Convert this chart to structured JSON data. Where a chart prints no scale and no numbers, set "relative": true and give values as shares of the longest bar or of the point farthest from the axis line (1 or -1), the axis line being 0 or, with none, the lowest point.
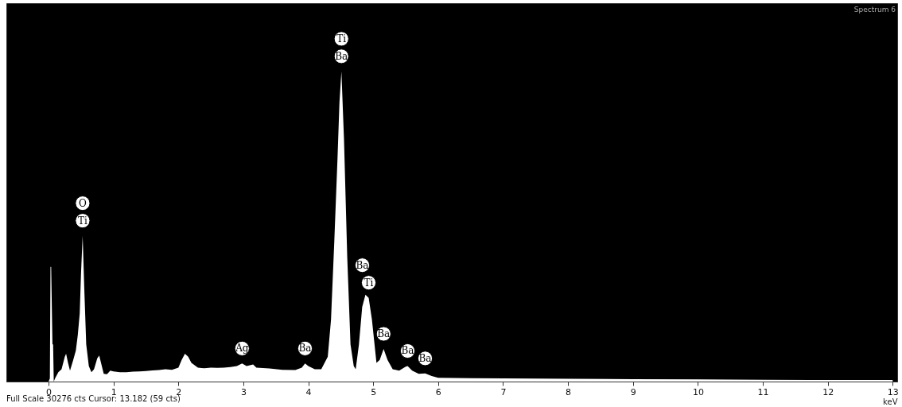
{
  "chart_data": {
    "type": "area",
    "title": "Spectrum 6",
    "xlabel": "keV",
    "relative": true,
    "xlim": [
      -0.65,
      13.07
    ],
    "xticks": [
      0,
      1,
      2,
      3,
      4,
      5,
      6,
      7,
      8,
      9,
      10,
      11,
      12,
      13
    ],
    "x": [
      0,
      0.02,
      0.03,
      0.04,
      0.06,
      0.07,
      0.08,
      0.1,
      0.15,
      0.2,
      0.25,
      0.27,
      0.3,
      0.33,
      0.38,
      0.42,
      0.45,
      0.48,
      0.5,
      0.525,
      0.55,
      0.58,
      0.62,
      0.66,
      0.7,
      0.75,
      0.78,
      0.82,
      0.85,
      0.9,
      0.95,
      1.0,
      1.1,
      1.2,
      1.3,
      1.4,
      1.5,
      1.6,
      1.7,
      1.8,
      1.9,
      2.0,
      2.05,
      2.1,
      2.15,
      2.2,
      2.3,
      2.4,
      2.5,
      2.6,
      2.7,
      2.8,
      2.9,
      2.98,
      3.05,
      3.15,
      3.2,
      3.4,
      3.6,
      3.8,
      3.9,
      3.95,
      4.0,
      4.1,
      4.2,
      4.3,
      4.35,
      4.4,
      4.45,
      4.48,
      4.51,
      4.55,
      4.6,
      4.65,
      4.7,
      4.73,
      4.78,
      4.83,
      4.88,
      4.93,
      4.98,
      5.05,
      5.1,
      5.16,
      5.22,
      5.3,
      5.4,
      5.5,
      5.53,
      5.6,
      5.7,
      5.8,
      5.9,
      6.0,
      6.5,
      7,
      8,
      9,
      10,
      11,
      12,
      13
    ],
    "series": [
      {
        "color": "#ffffff",
        "values": [
          0,
          0.01,
          0.37,
          0.37,
          0.12,
          0.12,
          0,
          0.01,
          0.03,
          0.04,
          0.08,
          0.09,
          0.06,
          0.035,
          0.07,
          0.1,
          0.15,
          0.22,
          0.35,
          0.47,
          0.3,
          0.12,
          0.05,
          0.03,
          0.04,
          0.075,
          0.084,
          0.05,
          0.025,
          0.024,
          0.035,
          0.033,
          0.03,
          0.03,
          0.032,
          0.033,
          0.034,
          0.036,
          0.037,
          0.04,
          0.038,
          0.045,
          0.07,
          0.09,
          0.08,
          0.06,
          0.045,
          0.043,
          0.045,
          0.044,
          0.045,
          0.047,
          0.05,
          0.058,
          0.05,
          0.055,
          0.045,
          0.042,
          0.038,
          0.037,
          0.045,
          0.058,
          0.05,
          0.04,
          0.04,
          0.08,
          0.2,
          0.45,
          0.72,
          0.9,
          1.0,
          0.78,
          0.4,
          0.12,
          0.05,
          0.04,
          0.12,
          0.24,
          0.28,
          0.27,
          0.2,
          0.06,
          0.07,
          0.105,
          0.07,
          0.04,
          0.035,
          0.048,
          0.05,
          0.035,
          0.025,
          0.026,
          0.018,
          0.012,
          0.011,
          0.01,
          0.009,
          0.008,
          0.007,
          0.006,
          0.005,
          0.005
        ]
      }
    ],
    "annotations": [
      "Full Scale 30276 cts Cursor: 13.182  (59 cts)",
      {
        "text": "Ti",
        "x": 0.525,
        "y": 0.47
      },
      "O",
      {
        "text": "Ag",
        "x": 2.98,
        "y": 0.058
      },
      {
        "text": "Ba",
        "x": 3.95,
        "y": 0.058
      },
      {
        "text": "Ba",
        "x": 4.51,
        "y": 1.0
      },
      "Ti",
      {
        "text": "Ti",
        "x": 4.93,
        "y": 0.27
      },
      "Ba",
      {
        "text": "Ba",
        "x": 5.16,
        "y": 0.105
      },
      {
        "text": "Ba",
        "x": 5.53,
        "y": 0.05
      },
      {
        "text": "Ba",
        "x": 5.8,
        "y": 0.026
      }
    ]
  }
}
